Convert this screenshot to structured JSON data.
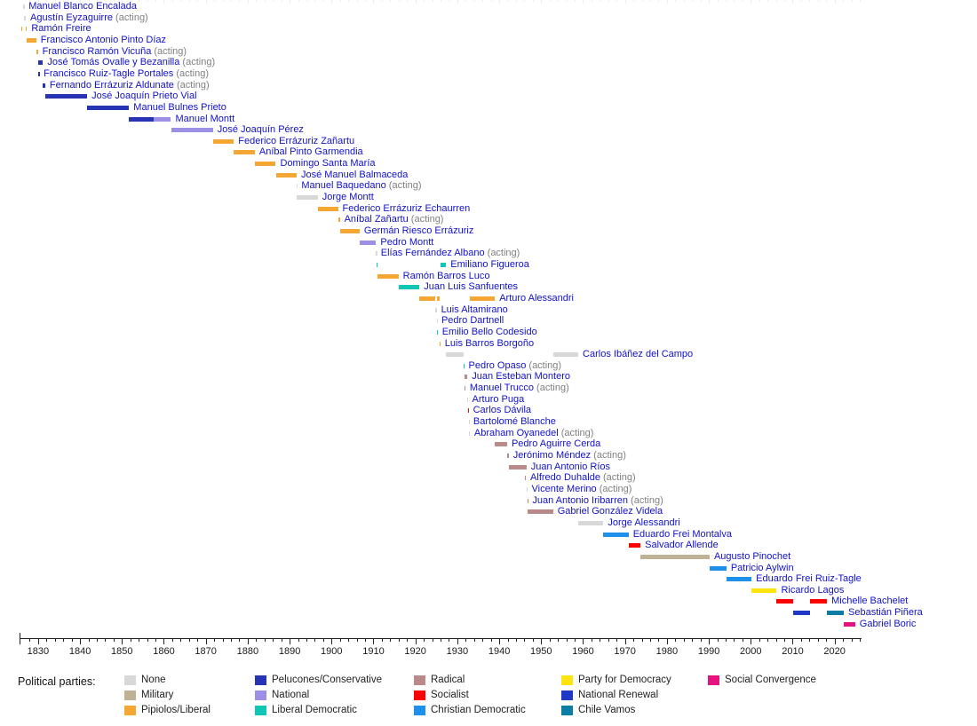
{
  "legend": {
    "label": "Political parties:",
    "columns": [
      [
        "none",
        "military",
        "liberal"
      ],
      [
        "conservative",
        "national",
        "liberal-democratic"
      ],
      [
        "radical",
        "socialist",
        "christian-democratic"
      ],
      [
        "party-for-democracy",
        "national-renewal",
        "chile-vamos"
      ],
      [
        "social-convergence"
      ]
    ]
  },
  "parties": {
    "none": {
      "label": "None",
      "color": "#d8d8d8"
    },
    "military": {
      "label": "Military",
      "color": "#bfb193"
    },
    "liberal": {
      "label": "Pipiolos/Liberal",
      "color": "#f5a733"
    },
    "conservative": {
      "label": "Pelucones/Conservative",
      "color": "#2634b4"
    },
    "national": {
      "label": "National",
      "color": "#9c8fe6"
    },
    "liberal-democratic": {
      "label": "Liberal Democratic",
      "color": "#0fc7b4"
    },
    "radical": {
      "label": "Radical",
      "color": "#ba8a8a"
    },
    "socialist": {
      "label": "Socialist",
      "color": "#fe0000"
    },
    "christian-democratic": {
      "label": "Christian Democratic",
      "color": "#1e90ea"
    },
    "party-for-democracy": {
      "label": "Party for Democracy",
      "color": "#fee30f"
    },
    "national-renewal": {
      "label": "National Renewal",
      "color": "#2038c8"
    },
    "chile-vamos": {
      "label": "Chile Vamos",
      "color": "#0b7ca3"
    },
    "social-convergence": {
      "label": "Social Convergence",
      "color": "#e5127f"
    }
  },
  "chart_data": {
    "type": "bar",
    "variant": "timeline-gantt",
    "title": "",
    "xlabel": "",
    "ylabel": "",
    "x_range": [
      1826,
      2027
    ],
    "axis": {
      "major_ticks": [
        1830,
        1840,
        1850,
        1860,
        1870,
        1880,
        1890,
        1900,
        1910,
        1920,
        1930,
        1940,
        1950,
        1960,
        1970,
        1980,
        1990,
        2000,
        2010,
        2020
      ],
      "minor_tick_start": 1828,
      "minor_tick_end": 2026,
      "minor_tick_step": 2
    },
    "presidents": [
      {
        "name": "Manuel Blanco Encalada",
        "acting": false,
        "segments": [
          [
            1826.52,
            1826.69,
            "none"
          ]
        ]
      },
      {
        "name": "Agustín Eyzaguirre",
        "acting": true,
        "segments": [
          [
            1826.69,
            1827.07,
            "none"
          ]
        ]
      },
      {
        "name": "Ramón Freire",
        "acting": false,
        "segments": [
          [
            1826.0,
            1826.25,
            "liberal"
          ],
          [
            1827.07,
            1827.35,
            "liberal"
          ]
        ]
      },
      {
        "name": "Francisco Antonio Pinto Díaz",
        "acting": false,
        "segments": [
          [
            1827.35,
            1829.55,
            "liberal"
          ]
        ]
      },
      {
        "name": "Francisco Ramón Vicuña",
        "acting": true,
        "segments": [
          [
            1829.55,
            1829.95,
            "liberal"
          ]
        ]
      },
      {
        "name": "José Tomás Ovalle y Bezanilla",
        "acting": true,
        "segments": [
          [
            1830.13,
            1831.17,
            "conservative"
          ]
        ]
      },
      {
        "name": "Francisco Ruiz-Tagle Portales",
        "acting": true,
        "segments": [
          [
            1830.1,
            1830.27,
            "conservative"
          ]
        ]
      },
      {
        "name": "Fernando Errázuriz Aldunate",
        "acting": true,
        "segments": [
          [
            1831.17,
            1831.7,
            "conservative"
          ]
        ]
      },
      {
        "name": "José Joaquín Prieto Vial",
        "acting": false,
        "segments": [
          [
            1831.7,
            1841.7,
            "conservative"
          ]
        ]
      },
      {
        "name": "Manuel Bulnes Prieto",
        "acting": false,
        "segments": [
          [
            1841.7,
            1851.7,
            "conservative"
          ]
        ]
      },
      {
        "name": "Manuel Montt",
        "acting": false,
        "segments": [
          [
            1851.7,
            1857.5,
            "conservative"
          ],
          [
            1857.5,
            1861.7,
            "national"
          ]
        ]
      },
      {
        "name": "José Joaquín Pérez",
        "acting": false,
        "segments": [
          [
            1861.7,
            1871.7,
            "national"
          ]
        ]
      },
      {
        "name": "Federico Errázuriz Zañartu",
        "acting": false,
        "segments": [
          [
            1871.7,
            1876.7,
            "liberal"
          ]
        ]
      },
      {
        "name": "Aníbal Pinto Garmendia",
        "acting": false,
        "segments": [
          [
            1876.7,
            1881.7,
            "liberal"
          ]
        ]
      },
      {
        "name": "Domingo Santa María",
        "acting": false,
        "segments": [
          [
            1881.7,
            1886.7,
            "liberal"
          ]
        ]
      },
      {
        "name": "José Manuel Balmaceda",
        "acting": false,
        "segments": [
          [
            1886.7,
            1891.67,
            "liberal"
          ]
        ]
      },
      {
        "name": "Manuel Baquedano",
        "acting": true,
        "segments": [
          [
            1891.67,
            1891.75,
            "none"
          ]
        ]
      },
      {
        "name": "Jorge Montt",
        "acting": false,
        "segments": [
          [
            1891.75,
            1896.7,
            "none"
          ]
        ]
      },
      {
        "name": "Federico Errázuriz Echaurren",
        "acting": false,
        "segments": [
          [
            1896.7,
            1901.54,
            "liberal"
          ]
        ]
      },
      {
        "name": "Aníbal Zañartu",
        "acting": true,
        "segments": [
          [
            1901.54,
            1901.97,
            "liberal"
          ]
        ]
      },
      {
        "name": "Germán Riesco Errázuriz",
        "acting": false,
        "segments": [
          [
            1901.97,
            1906.7,
            "liberal"
          ]
        ]
      },
      {
        "name": "Pedro Montt",
        "acting": false,
        "segments": [
          [
            1906.7,
            1910.62,
            "national"
          ]
        ]
      },
      {
        "name": "Elías Fernández Albano",
        "acting": true,
        "segments": [
          [
            1910.62,
            1910.7,
            "none"
          ]
        ]
      },
      {
        "name": "Emiliano Figueroa",
        "acting": false,
        "segments": [
          [
            1910.7,
            1910.97,
            "liberal-democratic"
          ],
          [
            1925.96,
            1927.33,
            "liberal-democratic"
          ]
        ]
      },
      {
        "name": "Ramón Barros Luco",
        "acting": false,
        "segments": [
          [
            1910.97,
            1915.97,
            "liberal"
          ]
        ]
      },
      {
        "name": "Juan Luis Sanfuentes",
        "acting": false,
        "segments": [
          [
            1915.97,
            1920.97,
            "liberal-democratic"
          ]
        ]
      },
      {
        "name": "Arturo Alessandri",
        "acting": false,
        "segments": [
          [
            1920.97,
            1924.68,
            "liberal"
          ],
          [
            1925.25,
            1925.75,
            "liberal"
          ],
          [
            1932.97,
            1938.97,
            "liberal"
          ]
        ]
      },
      {
        "name": "Luis Altamirano",
        "acting": false,
        "segments": [
          [
            1924.68,
            1925.06,
            "none"
          ]
        ]
      },
      {
        "name": "Pedro Dartnell",
        "acting": false,
        "segments": [
          [
            1925.06,
            1925.14,
            "none"
          ]
        ]
      },
      {
        "name": "Emilio Bello Codesido",
        "acting": false,
        "segments": [
          [
            1925.14,
            1925.3,
            "liberal-democratic"
          ]
        ]
      },
      {
        "name": "Luis Barros Borgoño",
        "acting": false,
        "segments": [
          [
            1925.75,
            1925.96,
            "liberal"
          ]
        ]
      },
      {
        "name": "Carlos Ibáñez del Campo",
        "acting": false,
        "segments": [
          [
            1927.33,
            1931.57,
            "none"
          ],
          [
            1952.85,
            1958.85,
            "none"
          ]
        ]
      },
      {
        "name": "Pedro Opaso",
        "acting": true,
        "segments": [
          [
            1931.57,
            1931.62,
            "liberal-democratic"
          ]
        ]
      },
      {
        "name": "Juan Esteban Montero",
        "acting": false,
        "segments": [
          [
            1931.62,
            1932.42,
            "radical"
          ]
        ]
      },
      {
        "name": "Manuel Trucco",
        "acting": true,
        "segments": [
          [
            1931.65,
            1931.9,
            "radical"
          ]
        ]
      },
      {
        "name": "Arturo Puga",
        "acting": false,
        "segments": [
          [
            1932.42,
            1932.47,
            "none"
          ]
        ]
      },
      {
        "name": "Carlos Dávila",
        "acting": false,
        "segments": [
          [
            1932.47,
            1932.7,
            "socialist"
          ]
        ]
      },
      {
        "name": "Bartolomé Blanche",
        "acting": false,
        "segments": [
          [
            1932.7,
            1932.76,
            "none"
          ]
        ]
      },
      {
        "name": "Abraham Oyanedel",
        "acting": true,
        "segments": [
          [
            1932.76,
            1932.97,
            "none"
          ]
        ]
      },
      {
        "name": "Pedro Aguirre Cerda",
        "acting": false,
        "segments": [
          [
            1938.97,
            1941.88,
            "radical"
          ]
        ]
      },
      {
        "name": "Jerónimo Méndez",
        "acting": true,
        "segments": [
          [
            1941.88,
            1942.25,
            "radical"
          ]
        ]
      },
      {
        "name": "Juan Antonio Ríos",
        "acting": false,
        "segments": [
          [
            1942.25,
            1946.5,
            "radical"
          ]
        ]
      },
      {
        "name": "Alfredo Duhalde",
        "acting": true,
        "segments": [
          [
            1946.05,
            1946.35,
            "radical"
          ]
        ]
      },
      {
        "name": "Vicente Merino",
        "acting": true,
        "segments": [
          [
            1946.6,
            1946.66,
            "none"
          ]
        ]
      },
      {
        "name": "Juan Antonio Iribarren",
        "acting": true,
        "segments": [
          [
            1946.75,
            1946.84,
            "radical"
          ]
        ]
      },
      {
        "name": "Gabriel González Videla",
        "acting": false,
        "segments": [
          [
            1946.85,
            1952.85,
            "radical"
          ]
        ]
      },
      {
        "name": "Jorge Alessandri",
        "acting": false,
        "segments": [
          [
            1958.85,
            1964.85,
            "none"
          ]
        ]
      },
      {
        "name": "Eduardo Frei Montalva",
        "acting": false,
        "segments": [
          [
            1964.85,
            1970.85,
            "christian-democratic"
          ]
        ]
      },
      {
        "name": "Salvador Allende",
        "acting": false,
        "segments": [
          [
            1970.85,
            1973.7,
            "socialist"
          ]
        ]
      },
      {
        "name": "Augusto Pinochet",
        "acting": false,
        "segments": [
          [
            1973.7,
            1990.19,
            "military"
          ]
        ]
      },
      {
        "name": "Patricio Aylwin",
        "acting": false,
        "segments": [
          [
            1990.19,
            1994.19,
            "christian-democratic"
          ]
        ]
      },
      {
        "name": "Eduardo Frei Ruiz-Tagle",
        "acting": false,
        "segments": [
          [
            1994.19,
            2000.19,
            "christian-democratic"
          ]
        ]
      },
      {
        "name": "Ricardo Lagos",
        "acting": false,
        "segments": [
          [
            2000.19,
            2006.19,
            "party-for-democracy"
          ]
        ]
      },
      {
        "name": "Michelle Bachelet",
        "acting": false,
        "segments": [
          [
            2006.19,
            2010.19,
            "socialist"
          ],
          [
            2014.19,
            2018.19,
            "socialist"
          ]
        ]
      },
      {
        "name": "Sebastián Piñera",
        "acting": false,
        "segments": [
          [
            2010.19,
            2014.19,
            "national-renewal"
          ],
          [
            2018.19,
            2022.19,
            "chile-vamos"
          ]
        ]
      },
      {
        "name": "Gabriel Boric",
        "acting": false,
        "segments": [
          [
            2022.19,
            2024.9,
            "social-convergence"
          ]
        ]
      }
    ],
    "acting_suffix": " (acting)",
    "legend_position": "bottom",
    "grid": false
  }
}
